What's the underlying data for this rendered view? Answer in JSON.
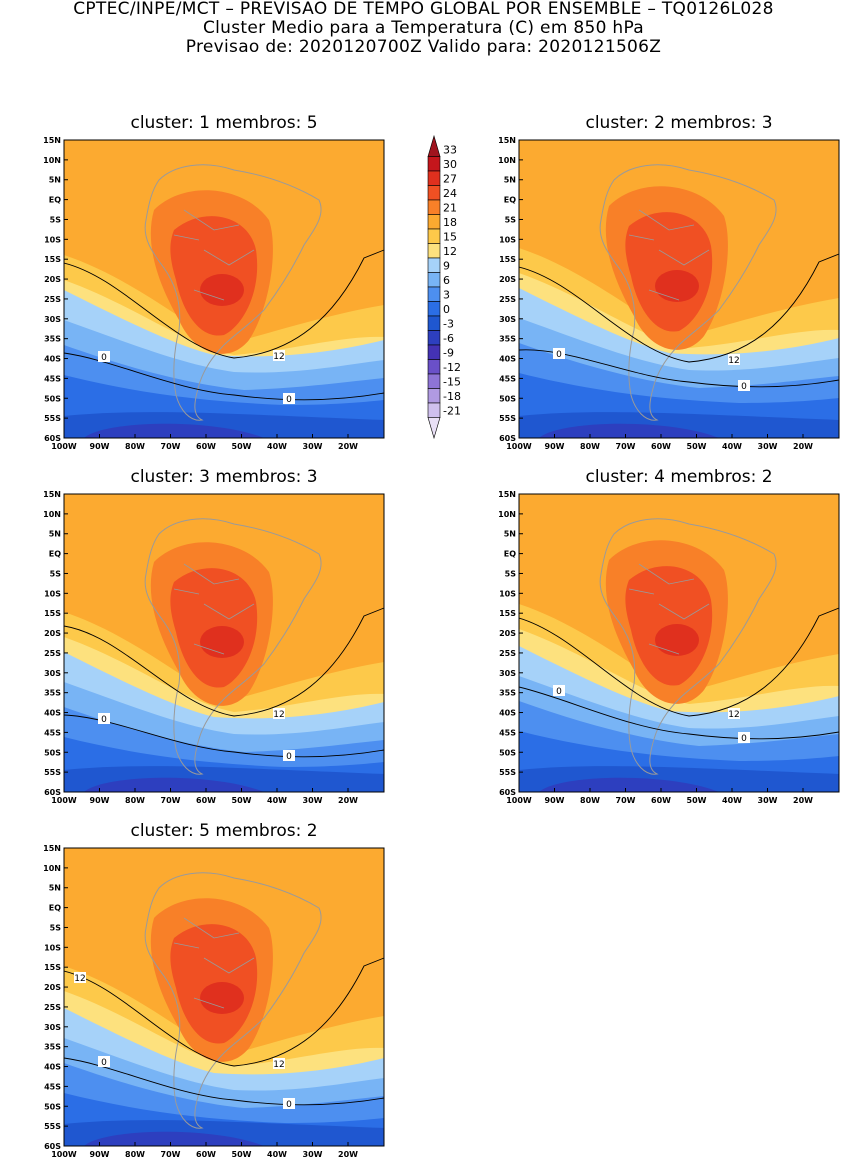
{
  "header": {
    "line1": "CPTEC/INPE/MCT – PREVISAO DE TEMPO GLOBAL POR ENSEMBLE – TQ0126L028",
    "line2": "Cluster Medio para a Temperatura (C) em 850 hPa",
    "line3": "Previsao de: 2020120700Z    Valido para: 2020121506Z"
  },
  "panels": [
    {
      "title": "cluster: 1   membros: 5",
      "contour_labels": [
        "12",
        "0",
        "0"
      ]
    },
    {
      "title": "cluster: 2   membros: 3",
      "contour_labels": [
        "12",
        "0",
        "0"
      ]
    },
    {
      "title": "cluster: 3   membros: 3",
      "contour_labels": [
        "12",
        "0",
        "0"
      ]
    },
    {
      "title": "cluster: 4   membros: 2",
      "contour_labels": [
        "12",
        "0",
        "0"
      ]
    },
    {
      "title": "cluster: 5   membros: 2",
      "contour_labels": [
        "12",
        "12",
        "0",
        "0"
      ]
    }
  ],
  "lat_labels": [
    "15N",
    "10N",
    "5N",
    "EQ",
    "5S",
    "10S",
    "15S",
    "20S",
    "25S",
    "30S",
    "35S",
    "40S",
    "45S",
    "50S",
    "55S",
    "60S"
  ],
  "lon_labels": [
    "100W",
    "90W",
    "80W",
    "70W",
    "60W",
    "50W",
    "40W",
    "30W",
    "20W"
  ],
  "legend": {
    "levels": [
      "33",
      "30",
      "27",
      "24",
      "21",
      "18",
      "15",
      "12",
      "9",
      "6",
      "3",
      "0",
      "-3",
      "-6",
      "-9",
      "-12",
      "-15",
      "-18",
      "-21"
    ],
    "colors": [
      "#a0141e",
      "#c4161c",
      "#e0301e",
      "#f05023",
      "#f88028",
      "#fcaa30",
      "#fdc94a",
      "#fde17e",
      "#a6d2f9",
      "#78b4f5",
      "#4d8ff0",
      "#2b6ee6",
      "#1f57d0",
      "#2d3fbf",
      "#4432b4",
      "#6a50c8",
      "#8e74d6",
      "#b09ae2",
      "#cfc0ee",
      "#e9e0f6"
    ]
  }
}
